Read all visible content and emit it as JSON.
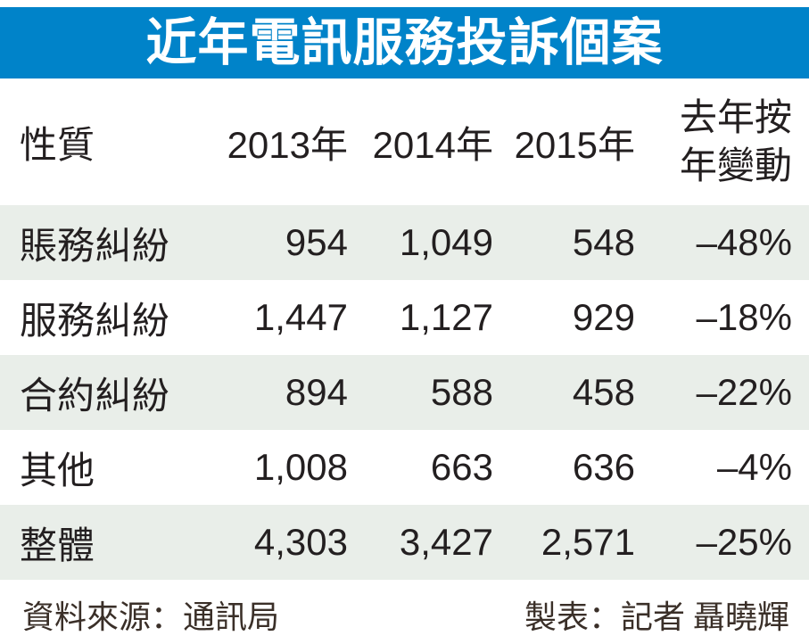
{
  "title": "近年電訊服務投訴個案",
  "colors": {
    "title_bar_bg": "#0083c9",
    "row_alt_bg": "#e9eee9",
    "text": "#231f20",
    "footer_text": "#3a2f28"
  },
  "table": {
    "headers": [
      "性質",
      "2013年",
      "2014年",
      "2015年"
    ],
    "change_header": {
      "line1": "去年按",
      "line2": "年變動"
    },
    "rows": [
      {
        "label": "賬務糾紛",
        "y2013": "954",
        "y2014": "1,049",
        "y2015": "548",
        "change": "–48%"
      },
      {
        "label": "服務糾紛",
        "y2013": "1,447",
        "y2014": "1,127",
        "y2015": "929",
        "change": "–18%"
      },
      {
        "label": "合約糾紛",
        "y2013": "894",
        "y2014": "588",
        "y2015": "458",
        "change": "–22%"
      },
      {
        "label": "其他",
        "y2013": "1,008",
        "y2014": "663",
        "y2015": "636",
        "change": "–4%"
      },
      {
        "label": "整體",
        "y2013": "4,303",
        "y2014": "3,427",
        "y2015": "2,571",
        "change": "–25%"
      }
    ]
  },
  "footer": {
    "source": "資料來源：通訊局",
    "credit": "製表：記者 聶曉輝"
  },
  "chart_data": {
    "type": "table",
    "title": "近年電訊服務投訴個案",
    "categories": [
      "賬務糾紛",
      "服務糾紛",
      "合約糾紛",
      "其他",
      "整體"
    ],
    "series": [
      {
        "name": "2013年",
        "values": [
          954,
          1447,
          894,
          1008,
          4303
        ]
      },
      {
        "name": "2014年",
        "values": [
          1049,
          1127,
          588,
          663,
          3427
        ]
      },
      {
        "name": "2015年",
        "values": [
          548,
          929,
          458,
          636,
          2571
        ]
      },
      {
        "name": "去年按年變動",
        "values": [
          "-48%",
          "-18%",
          "-22%",
          "-4%",
          "-25%"
        ]
      }
    ],
    "source": "通訊局",
    "legend_position": "none",
    "grid": false
  }
}
